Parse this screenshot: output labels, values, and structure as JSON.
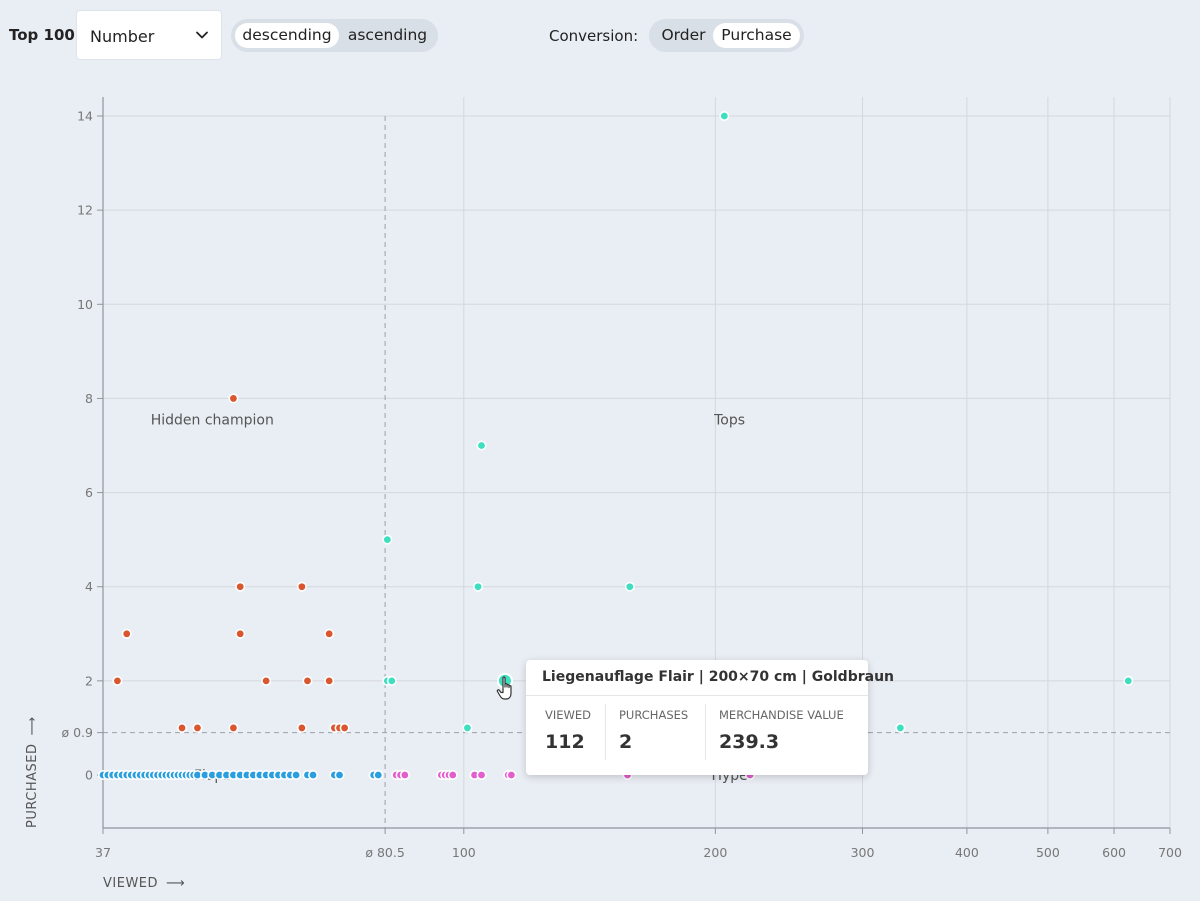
{
  "toolbar": {
    "title": "Top 100",
    "metric_select": {
      "value": "Number"
    },
    "sort_options": [
      "descending",
      "ascending"
    ],
    "sort_active": "descending",
    "conversion_label": "Conversion:",
    "conversion_options": [
      "Order",
      "Purchase"
    ],
    "conversion_active": "Purchase"
  },
  "tooltip": {
    "title": "Liegenauflage Flair | 200×70 cm | Goldbraun",
    "viewed_label": "VIEWED",
    "viewed_value": "112",
    "purchases_label": "PURCHASES",
    "purchases_value": "2",
    "merch_label": "MERCHANDISE VALUE",
    "merch_value": "239.3"
  },
  "chart_data": {
    "type": "scatter",
    "xlabel": "VIEWED",
    "ylabel": "PURCHASED",
    "x_scale": "log",
    "xlim": [
      37,
      700
    ],
    "ylim": [
      -1.1,
      14
    ],
    "x_ticks": [
      "37",
      "ø 80.5",
      "100",
      "200",
      "300",
      "400",
      "500",
      "600",
      "700"
    ],
    "x_tick_values": [
      37,
      80.5,
      100,
      200,
      300,
      400,
      500,
      600,
      700
    ],
    "y_ticks": [
      "0",
      "ø 0.9",
      "2",
      "4",
      "6",
      "8",
      "10",
      "12",
      "14"
    ],
    "y_tick_values": [
      0,
      0.9,
      2,
      4,
      6,
      8,
      10,
      12,
      14
    ],
    "avg_x": 80.5,
    "avg_y": 0.9,
    "grid": true,
    "quadrant_labels": [
      {
        "text": "Hidden champion",
        "x": 50,
        "y": 7.55
      },
      {
        "text": "Tops",
        "x": 208,
        "y": 7.55
      },
      {
        "text": "Flops",
        "x": 50,
        "y": 0
      },
      {
        "text": "Hype",
        "x": 208,
        "y": 0
      }
    ],
    "colors": {
      "hidden": "#d9562f",
      "tops": "#3ddfc0",
      "flops": "#2a9fe0",
      "hype": "#e25ecf"
    },
    "series": [
      {
        "group": "hidden",
        "x": [
          38.5,
          39.5,
          46,
          48,
          53,
          54,
          53,
          54,
          58,
          64,
          65,
          64,
          69,
          70,
          69,
          70,
          71,
          72
        ],
        "y": [
          2,
          3,
          1,
          1,
          1,
          4,
          8,
          3,
          2,
          1,
          2,
          4,
          3,
          1,
          2,
          1,
          1,
          1
        ]
      },
      {
        "group": "tops",
        "x": [
          81,
          81,
          82,
          101,
          104,
          105,
          112,
          158,
          205,
          333,
          624
        ],
        "y": [
          2,
          5,
          2,
          1,
          4,
          7,
          2,
          4,
          14,
          1,
          2
        ]
      },
      {
        "group": "flops",
        "x": [
          37,
          37.5,
          38,
          38.5,
          39,
          39.5,
          40,
          40.5,
          41,
          41.5,
          42,
          42.5,
          43,
          43.5,
          44,
          44.5,
          45,
          45.5,
          46,
          46.5,
          47,
          47.5,
          48,
          49,
          50,
          51,
          52,
          53,
          54,
          55,
          56,
          57,
          58,
          59,
          60,
          61,
          62,
          63,
          65,
          66,
          70,
          71,
          78,
          79
        ],
        "y": [
          0,
          0,
          0,
          0,
          0,
          0,
          0,
          0,
          0,
          0,
          0,
          0,
          0,
          0,
          0,
          0,
          0,
          0,
          0,
          0,
          0,
          0,
          0,
          0,
          0,
          0,
          0,
          0,
          0,
          0,
          0,
          0,
          0,
          0,
          0,
          0,
          0,
          0,
          0,
          0,
          0,
          0,
          0,
          0
        ]
      },
      {
        "group": "hype",
        "x": [
          83,
          84,
          85,
          94,
          95,
          96,
          97,
          103,
          105,
          113,
          114,
          157,
          220
        ],
        "y": [
          0,
          0,
          0,
          0,
          0,
          0,
          0,
          0,
          0,
          0,
          0,
          0,
          0
        ]
      }
    ],
    "highlight": {
      "x": 112,
      "y": 2
    }
  }
}
